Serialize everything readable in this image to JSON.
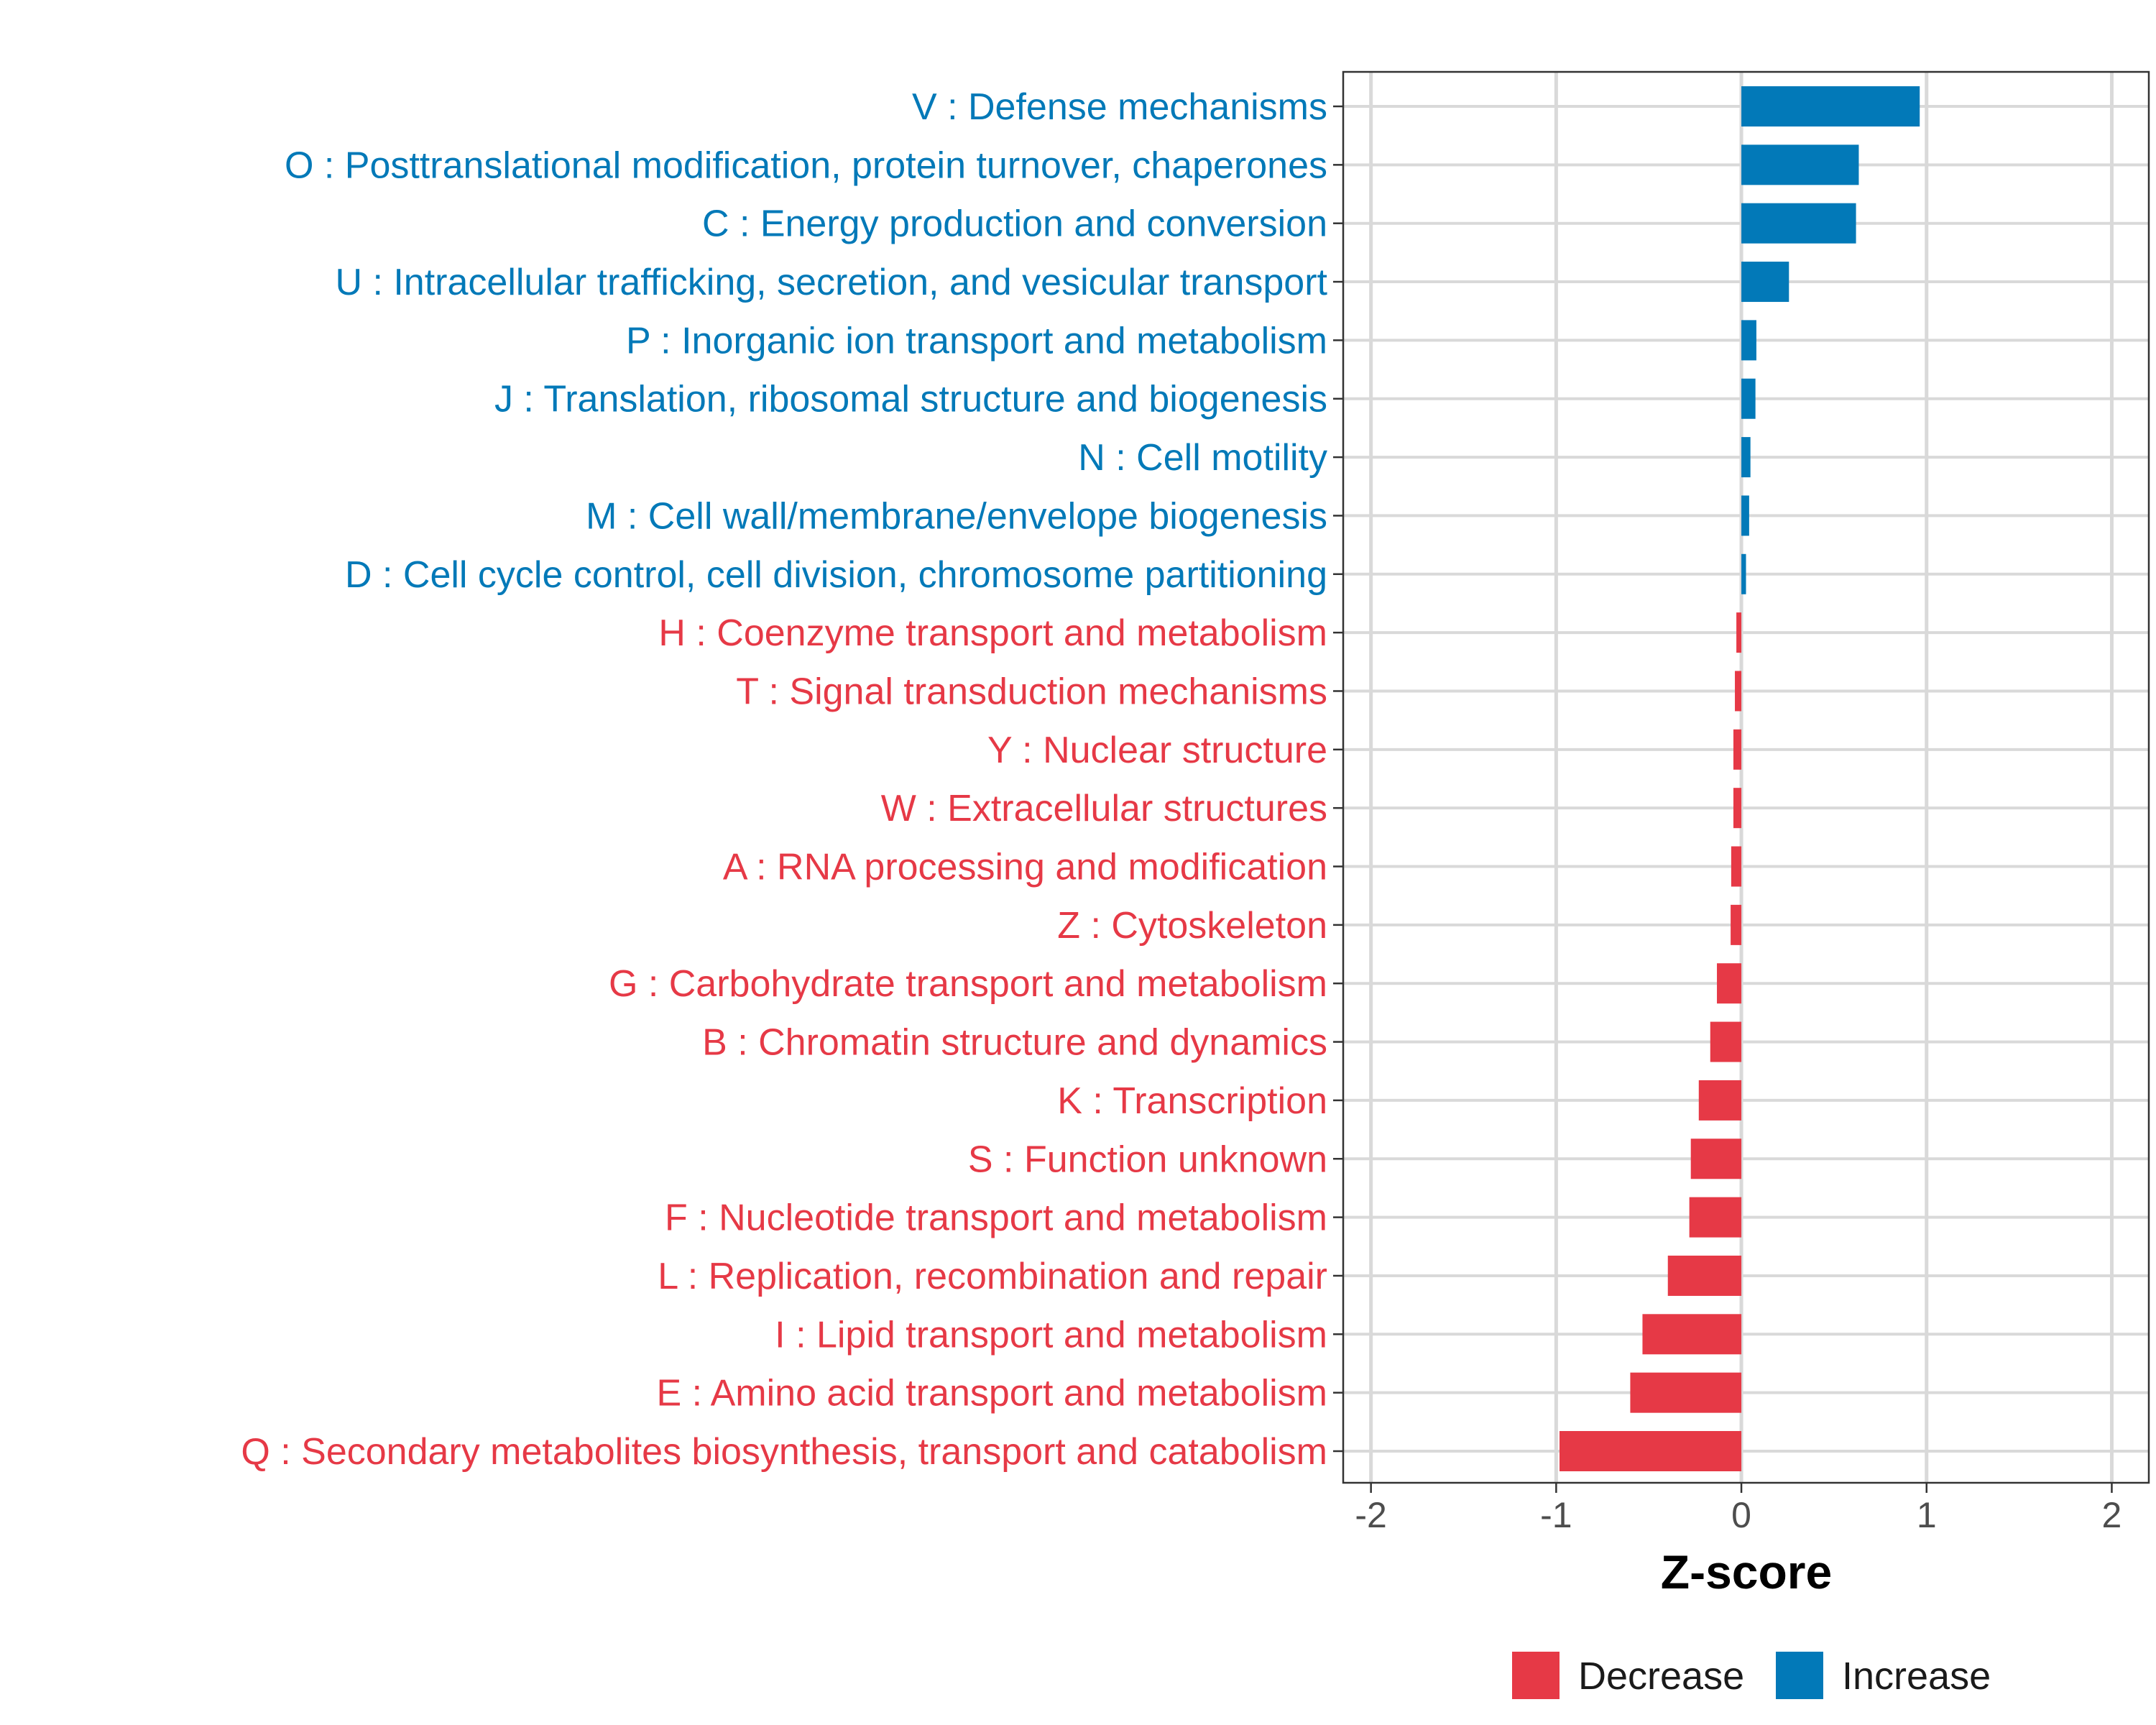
{
  "chart_data": {
    "type": "bar",
    "orientation": "horizontal",
    "title": "",
    "xlabel": "Z-score",
    "ylabel": "",
    "xlim": [
      -2.15,
      2.2
    ],
    "xticks": [
      -2,
      -1,
      0,
      1,
      2
    ],
    "xtick_labels": [
      "-2",
      "-1",
      "0",
      "1",
      "2"
    ],
    "grid": true,
    "legend_position": "bottom",
    "legend": [
      {
        "name": "Decrease",
        "color": "#E63946"
      },
      {
        "name": "Increase",
        "color": "#0279B8"
      }
    ],
    "categories": [
      "V : Defense mechanisms",
      "O : Posttranslational modification, protein turnover, chaperones",
      "C : Energy production and conversion",
      "U : Intracellular trafficking, secretion, and vesicular transport",
      "P : Inorganic ion transport and metabolism",
      "J : Translation, ribosomal structure and biogenesis",
      "N : Cell motility",
      "M : Cell wall/membrane/envelope biogenesis",
      "D : Cell cycle control, cell division, chromosome partitioning",
      "H : Coenzyme transport and metabolism",
      "T : Signal transduction mechanisms",
      "Y : Nuclear structure",
      "W : Extracellular structures",
      "A : RNA processing and modification",
      "Z : Cytoskeleton",
      "G : Carbohydrate transport and metabolism",
      "B : Chromatin structure and dynamics",
      "K : Transcription",
      "S : Function unknown",
      "F : Nucleotide transport and metabolism",
      "L : Replication, recombination and repair",
      "I : Lipid transport and metabolism",
      "E : Amino acid transport and metabolism",
      "Q : Secondary metabolites biosynthesis, transport and catabolism"
    ],
    "values": [
      0.963,
      0.634,
      0.619,
      0.257,
      0.081,
      0.076,
      0.049,
      0.042,
      0.025,
      -0.027,
      -0.035,
      -0.043,
      -0.043,
      -0.055,
      -0.058,
      -0.132,
      -0.168,
      -0.23,
      -0.273,
      -0.281,
      -0.397,
      -0.534,
      -0.6,
      -0.982
    ]
  }
}
